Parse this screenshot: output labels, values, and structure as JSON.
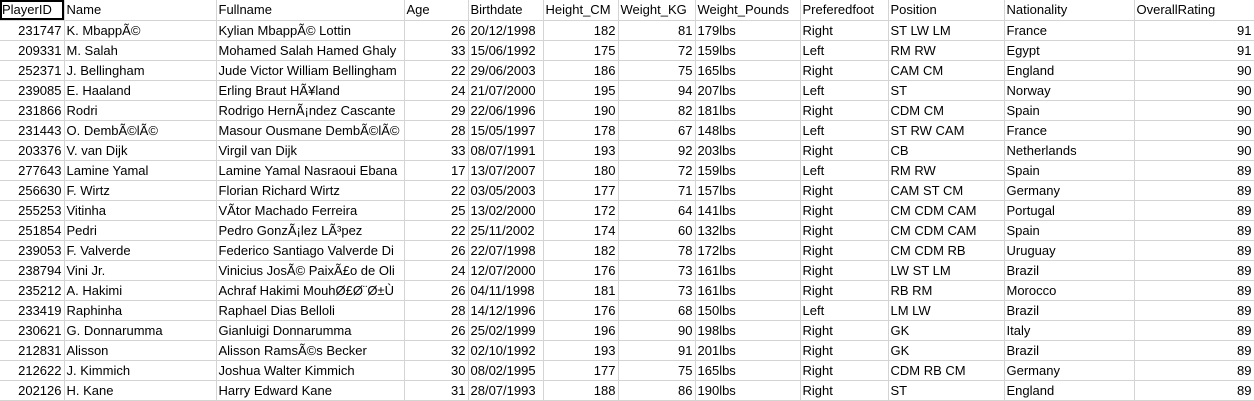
{
  "columns": [
    "PlayerID",
    "Name",
    "Fullname",
    "Age",
    "Birthdate",
    "Height_CM",
    "Weight_KG",
    "Weight_Pounds",
    "Preferedfoot",
    "Position",
    "Nationality",
    "OverallRating"
  ],
  "rows": [
    [
      "231747",
      "K. MbappÃ©",
      "Kylian MbappÃ© Lottin",
      "26",
      "20/12/1998",
      "182",
      "81",
      "179lbs",
      "Right",
      "ST LW LM",
      "France",
      "91"
    ],
    [
      "209331",
      "M. Salah",
      "Mohamed Salah Hamed Ghaly",
      "33",
      "15/06/1992",
      "175",
      "72",
      "159lbs",
      "Left",
      "RM RW",
      "Egypt",
      "91"
    ],
    [
      "252371",
      "J. Bellingham",
      "Jude Victor William Bellingham",
      "22",
      "29/06/2003",
      "186",
      "75",
      "165lbs",
      "Right",
      "CAM CM",
      "England",
      "90"
    ],
    [
      "239085",
      "E. Haaland",
      "Erling Braut HÃ¥land",
      "24",
      "21/07/2000",
      "195",
      "94",
      "207lbs",
      "Left",
      "ST",
      "Norway",
      "90"
    ],
    [
      "231866",
      "Rodri",
      "Rodrigo HernÃ¡ndez Cascante",
      "29",
      "22/06/1996",
      "190",
      "82",
      "181lbs",
      "Right",
      "CDM CM",
      "Spain",
      "90"
    ],
    [
      "231443",
      "O. DembÃ©lÃ©",
      "Masour Ousmane DembÃ©lÃ©",
      "28",
      "15/05/1997",
      "178",
      "67",
      "148lbs",
      "Left",
      "ST RW CAM",
      "France",
      "90"
    ],
    [
      "203376",
      "V. van Dijk",
      "Virgil van Dijk",
      "33",
      "08/07/1991",
      "193",
      "92",
      "203lbs",
      "Right",
      "CB",
      "Netherlands",
      "90"
    ],
    [
      "277643",
      "Lamine Yamal",
      "Lamine Yamal Nasraoui Ebana",
      "17",
      "13/07/2007",
      "180",
      "72",
      "159lbs",
      "Left",
      "RM RW",
      "Spain",
      "89"
    ],
    [
      "256630",
      "F. Wirtz",
      "Florian Richard Wirtz",
      "22",
      "03/05/2003",
      "177",
      "71",
      "157lbs",
      "Right",
      "CAM ST CM",
      "Germany",
      "89"
    ],
    [
      "255253",
      "Vitinha",
      "VÃ­tor Machado Ferreira",
      "25",
      "13/02/2000",
      "172",
      "64",
      "141lbs",
      "Right",
      "CM CDM CAM",
      "Portugal",
      "89"
    ],
    [
      "251854",
      "Pedri",
      "Pedro GonzÃ¡lez LÃ³pez",
      "22",
      "25/11/2002",
      "174",
      "60",
      "132lbs",
      "Right",
      "CM CDM CAM",
      "Spain",
      "89"
    ],
    [
      "239053",
      "F. Valverde",
      "Federico Santiago Valverde Di",
      "26",
      "22/07/1998",
      "182",
      "78",
      "172lbs",
      "Right",
      "CM CDM RB",
      "Uruguay",
      "89"
    ],
    [
      "238794",
      "Vini Jr.",
      "Vinicius JosÃ© PaixÃ£o de Oli",
      "24",
      "12/07/2000",
      "176",
      "73",
      "161lbs",
      "Right",
      "LW ST LM",
      "Brazil",
      "89"
    ],
    [
      "235212",
      "A. Hakimi",
      "Achraf Hakimi MouhØ£Ø¨Ø±Ù",
      "26",
      "04/11/1998",
      "181",
      "73",
      "161lbs",
      "Right",
      "RB RM",
      "Morocco",
      "89"
    ],
    [
      "233419",
      "Raphinha",
      "Raphael Dias Belloli",
      "28",
      "14/12/1996",
      "176",
      "68",
      "150lbs",
      "Left",
      "LM LW",
      "Brazil",
      "89"
    ],
    [
      "230621",
      "G. Donnarumma",
      "Gianluigi Donnarumma",
      "26",
      "25/02/1999",
      "196",
      "90",
      "198lbs",
      "Right",
      "GK",
      "Italy",
      "89"
    ],
    [
      "212831",
      "Alisson",
      "Alisson RamsÃ©s Becker",
      "32",
      "02/10/1992",
      "193",
      "91",
      "201lbs",
      "Right",
      "GK",
      "Brazil",
      "89"
    ],
    [
      "212622",
      "J. Kimmich",
      "Joshua Walter Kimmich",
      "30",
      "08/02/1995",
      "177",
      "75",
      "165lbs",
      "Right",
      "CDM RB CM",
      "Germany",
      "89"
    ],
    [
      "202126",
      "H. Kane",
      "Harry Edward Kane",
      "31",
      "28/07/1993",
      "188",
      "86",
      "190lbs",
      "Right",
      "ST",
      "England",
      "89"
    ]
  ]
}
